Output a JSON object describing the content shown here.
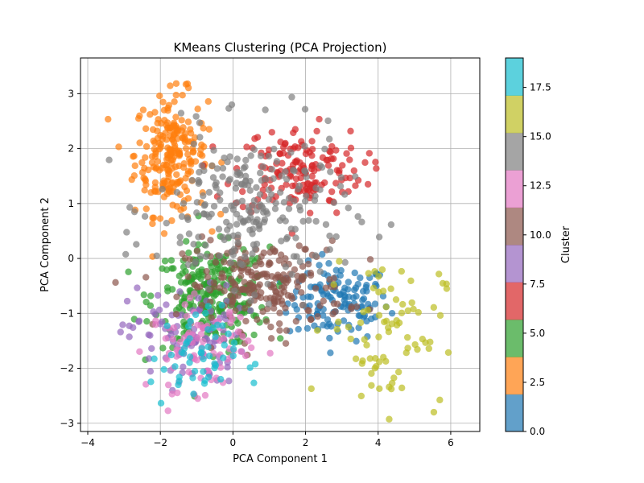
{
  "chart_data": {
    "type": "scatter",
    "title": "KMeans Clustering (PCA Projection)",
    "xlabel": "PCA Component 1",
    "ylabel": "PCA Component 2",
    "xlim": [
      -4.2,
      6.8
    ],
    "ylim": [
      -3.15,
      3.65
    ],
    "xticks": [
      -4,
      -2,
      0,
      2,
      4,
      6
    ],
    "yticks": [
      -3,
      -2,
      -1,
      0,
      1,
      2,
      3
    ],
    "grid": true,
    "point_alpha": 0.7,
    "colorbar": {
      "label": "Cluster",
      "range": [
        0,
        19
      ],
      "ticks": [
        0.0,
        2.5,
        5.0,
        7.5,
        10.0,
        12.5,
        15.0,
        17.5
      ],
      "tick_labels": [
        "0.0",
        "2.5",
        "5.0",
        "7.5",
        "10.0",
        "12.5",
        "15.0",
        "17.5"
      ],
      "colors": [
        "#1f77b4",
        "#ff7f0e",
        "#2ca02c",
        "#d62728",
        "#9467bd",
        "#8c564b",
        "#e377c2",
        "#7f7f7f",
        "#bcbd22",
        "#17becf"
      ]
    },
    "clusters": [
      {
        "value": 0,
        "color": "#1f77b4",
        "center": [
          2.9,
          -0.8
        ],
        "spread": [
          0.7,
          0.35
        ],
        "count": 130
      },
      {
        "value": 2,
        "color": "#ff7f0e",
        "center": [
          -1.7,
          1.9
        ],
        "spread": [
          0.5,
          0.55
        ],
        "count": 230
      },
      {
        "value": 5,
        "color": "#2ca02c",
        "center": [
          -0.6,
          -0.7
        ],
        "spread": [
          0.8,
          0.45
        ],
        "count": 260
      },
      {
        "value": 7,
        "color": "#d62728",
        "center": [
          1.8,
          1.6
        ],
        "spread": [
          0.9,
          0.4
        ],
        "count": 160
      },
      {
        "value": 9,
        "color": "#9467bd",
        "center": [
          -1.3,
          -1.4
        ],
        "spread": [
          0.8,
          0.45
        ],
        "count": 90
      },
      {
        "value": 11,
        "color": "#8c564b",
        "center": [
          0.9,
          -0.5
        ],
        "spread": [
          1.1,
          0.4
        ],
        "count": 220
      },
      {
        "value": 13,
        "color": "#e377c2",
        "center": [
          -0.9,
          -1.6
        ],
        "spread": [
          0.7,
          0.4
        ],
        "count": 90
      },
      {
        "value": 15,
        "color": "#7f7f7f",
        "center": [
          0.5,
          0.9
        ],
        "spread": [
          1.3,
          0.7
        ],
        "count": 240
      },
      {
        "value": 17,
        "color": "#bcbd22",
        "center": [
          4.2,
          -1.3
        ],
        "spread": [
          0.8,
          0.7
        ],
        "count": 80
      },
      {
        "value": 19,
        "color": "#17becf",
        "center": [
          -1.1,
          -1.8
        ],
        "spread": [
          0.6,
          0.45
        ],
        "count": 55
      }
    ]
  }
}
